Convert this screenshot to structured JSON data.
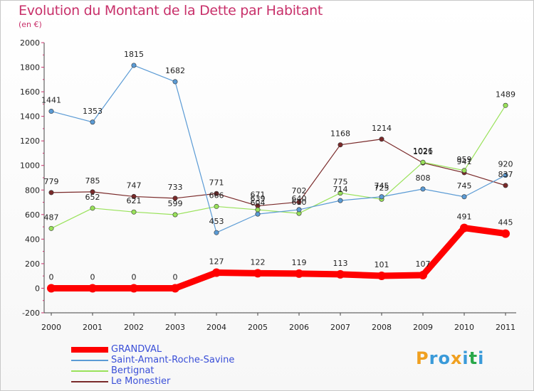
{
  "title": "Evolution du Montant de la Dette par Habitant",
  "subtitle": "(en €)",
  "brand": {
    "letters": [
      "P",
      "r",
      "o",
      "x",
      "i",
      "t",
      "i"
    ],
    "letter_colors": [
      "#f0a020",
      "#3a9ad9",
      "#3a9ad9",
      "#f0a020",
      "#3a9ad9",
      "#2aa84a",
      "#3a9ad9"
    ]
  },
  "chart_data": {
    "type": "line",
    "title": "Evolution du Montant de la Dette par Habitant",
    "ylabel": "(en €)",
    "xlabel": "",
    "x": [
      "2000",
      "2001",
      "2002",
      "2003",
      "2004",
      "2005",
      "2006",
      "2007",
      "2008",
      "2009",
      "2010",
      "2011"
    ],
    "ylim": [
      -200,
      2000
    ],
    "yticks": [
      "-200",
      "0",
      "200",
      "400",
      "600",
      "800",
      "1000",
      "1200",
      "1400",
      "1600",
      "1800",
      "2000"
    ],
    "grid": false,
    "legend": "bottom-left",
    "series": [
      {
        "name": "GRANDVAL",
        "color": "#ff0000",
        "values": [
          0,
          0,
          0,
          0,
          127,
          122,
          119,
          113,
          101,
          107,
          491,
          445
        ],
        "labels": [
          "0",
          "0",
          "0",
          "0",
          "127",
          "122",
          "119",
          "113",
          "101",
          "107",
          "491",
          "445"
        ]
      },
      {
        "name": "Saint-Amant-Roche-Savine",
        "color": "#5b9bd5",
        "values": [
          1441,
          1353,
          1815,
          1682,
          453,
          604,
          640,
          714,
          745,
          808,
          745,
          920
        ],
        "labels": [
          "1441",
          "1353",
          "1815",
          "1682",
          "453",
          "604",
          "640",
          "714",
          "745",
          "808",
          "745",
          "920"
        ]
      },
      {
        "name": "Bertignat",
        "color": "#99e25a",
        "values": [
          487,
          652,
          621,
          599,
          666,
          639,
          610,
          775,
          725,
          1026,
          959,
          1489
        ],
        "labels": [
          "487",
          "652",
          "621",
          "599",
          "666",
          "639",
          "610",
          "775",
          "725",
          "1026",
          "959",
          "1489"
        ]
      },
      {
        "name": "Le Monestier",
        "color": "#7a2a2a",
        "values": [
          779,
          785,
          747,
          733,
          771,
          671,
          702,
          1168,
          1214,
          1021,
          941,
          837
        ],
        "labels": [
          "779",
          "785",
          "747",
          "733",
          "771",
          "671",
          "702",
          "1168",
          "1214",
          "1021",
          "941",
          "837"
        ]
      }
    ]
  }
}
